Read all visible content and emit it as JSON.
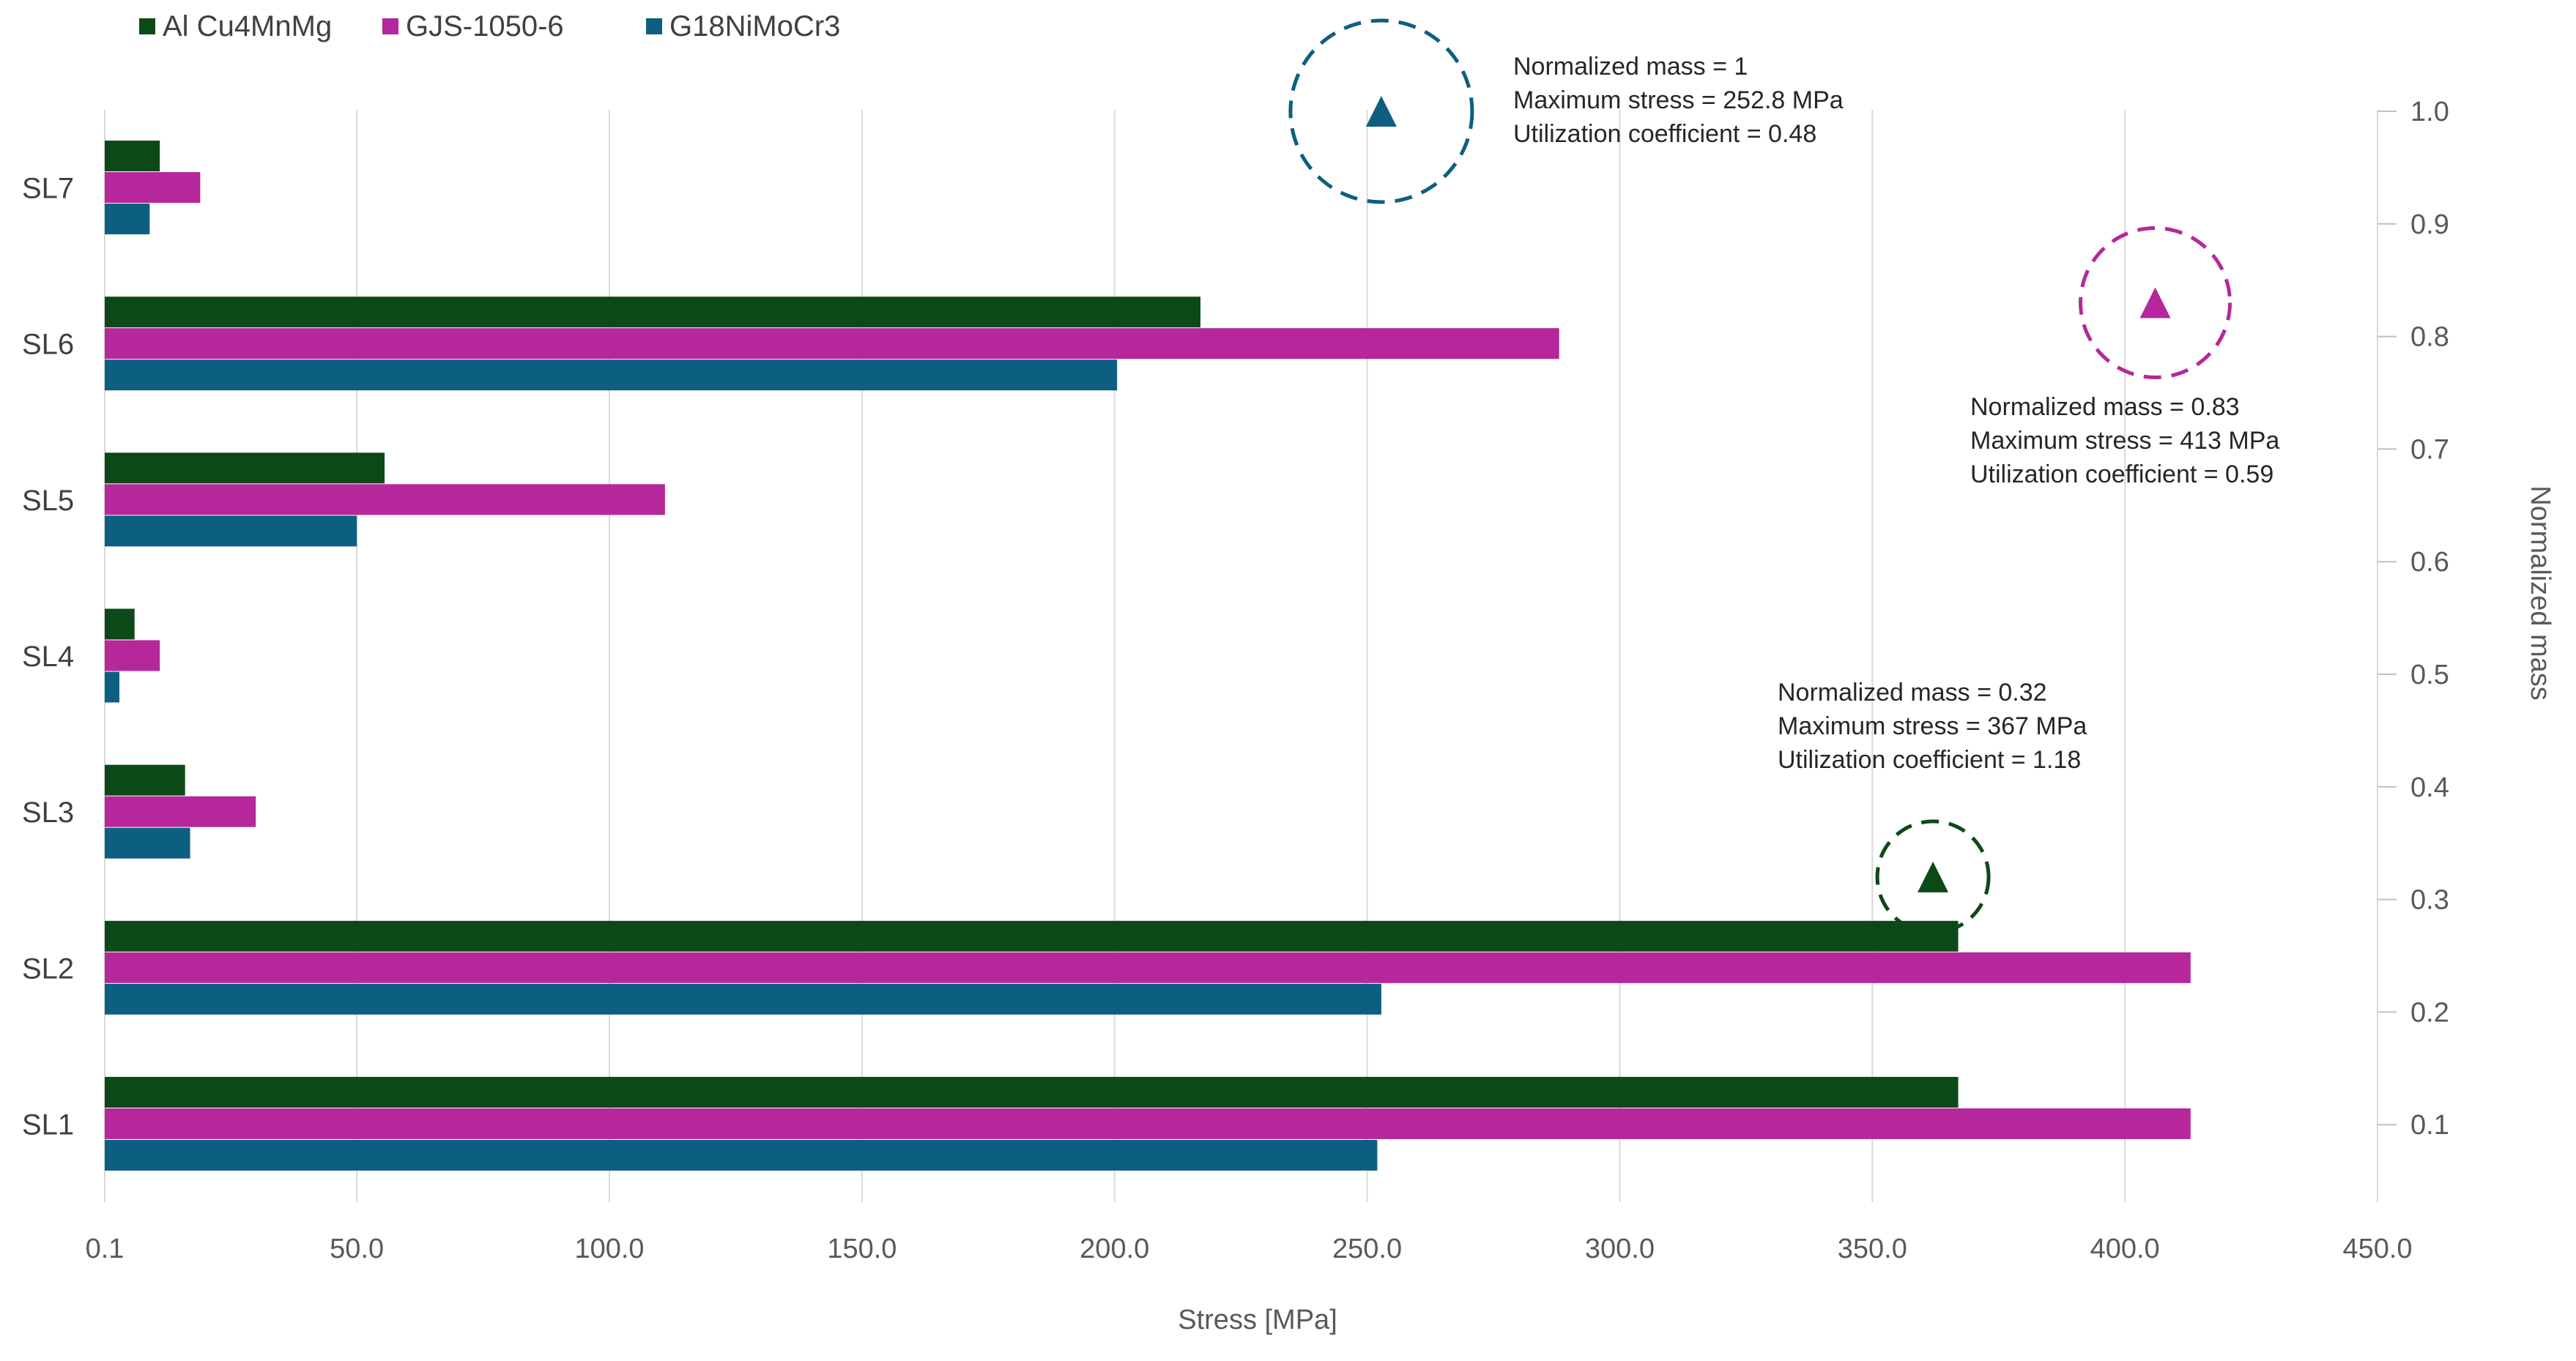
{
  "chart_data": {
    "type": "bar",
    "orientation": "horizontal",
    "categories": [
      "SL1",
      "SL2",
      "SL3",
      "SL4",
      "SL5",
      "SL6",
      "SL7"
    ],
    "series": [
      {
        "name": "Al Cu4MnMg",
        "color": "#0b4a17",
        "values": [
          367,
          367,
          16,
          6,
          55.5,
          217,
          11
        ]
      },
      {
        "name": "GJS-1050-6",
        "color": "#b5279a",
        "values": [
          413,
          413,
          30,
          11,
          111,
          288,
          19
        ]
      },
      {
        "name": "G18NiMoCr3",
        "color": "#0c5f80",
        "values": [
          252,
          252.8,
          17,
          3,
          50,
          200.5,
          9
        ]
      }
    ],
    "xlabel": "Stress [MPa]",
    "xlim": [
      0.1,
      450
    ],
    "xticks": [
      0.1,
      50,
      100,
      150,
      200,
      250,
      300,
      350,
      400,
      450
    ],
    "xtick_labels": [
      "0.1",
      "50.0",
      "100.0",
      "150.0",
      "200.0",
      "250.0",
      "300.0",
      "350.0",
      "400.0",
      "450.0"
    ],
    "y2label": "Normalized mass",
    "y2lim": [
      0,
      1.0
    ],
    "y2ticks": [
      0.1,
      0.2,
      0.3,
      0.4,
      0.5,
      0.6,
      0.7,
      0.8,
      0.9,
      1.0
    ],
    "y2tick_labels": [
      "0.1",
      "0.2",
      "0.3",
      "0.4",
      "0.5",
      "0.6",
      "0.7",
      "0.8",
      "0.9",
      "1.0"
    ],
    "grid": "vertical",
    "legend_position": "top-left",
    "points": [
      {
        "series": "G18NiMoCr3",
        "color": "#0c5f80",
        "stress": 252.8,
        "normalized_mass": 1.0,
        "annotation": [
          "Normalized mass = 1",
          "Maximum stress = 252.8 MPa",
          "Utilization coefficient = 0.48"
        ]
      },
      {
        "series": "GJS-1050-6",
        "color": "#b5279a",
        "stress": 406,
        "normalized_mass": 0.83,
        "annotation": [
          "Normalized mass = 0.83",
          "Maximum stress = 413 MPa",
          "Utilization coefficient = 0.59"
        ]
      },
      {
        "series": "Al Cu4MnMg",
        "color": "#0b4a17",
        "stress": 362,
        "normalized_mass": 0.32,
        "annotation": [
          "Normalized mass = 0.32",
          "Maximum stress = 367 MPa",
          "Utilization coefficient = 1.18"
        ]
      }
    ]
  }
}
